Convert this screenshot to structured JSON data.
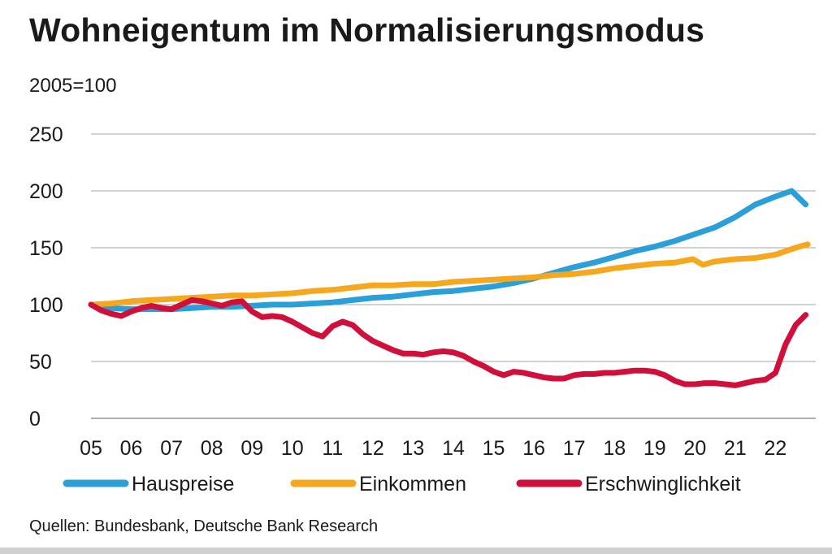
{
  "chart_data": {
    "type": "line",
    "title": "Wohneigentum im Normalisierungsmodus",
    "unit_label": "2005=100",
    "ylim": [
      0,
      250
    ],
    "yticks": [
      0,
      50,
      100,
      150,
      200,
      250
    ],
    "xlim": [
      2005,
      2023
    ],
    "xticks": [
      "05",
      "06",
      "07",
      "08",
      "09",
      "10",
      "11",
      "12",
      "13",
      "14",
      "15",
      "16",
      "17",
      "18",
      "19",
      "20",
      "21",
      "22"
    ],
    "grid": true,
    "legend_position": "bottom",
    "series": [
      {
        "name": "Hauspreise",
        "color": "#2a9fd8",
        "x": [
          2005.0,
          2005.5,
          2006.0,
          2006.5,
          2007.0,
          2007.5,
          2008.0,
          2008.5,
          2009.0,
          2009.5,
          2010.0,
          2010.5,
          2011.0,
          2011.5,
          2012.0,
          2012.5,
          2013.0,
          2013.5,
          2014.0,
          2014.5,
          2015.0,
          2015.5,
          2016.0,
          2016.5,
          2017.0,
          2017.5,
          2018.0,
          2018.5,
          2019.0,
          2019.5,
          2020.0,
          2020.5,
          2021.0,
          2021.5,
          2022.0,
          2022.4,
          2022.75
        ],
        "y": [
          100,
          97,
          96,
          96,
          96,
          97,
          98,
          98,
          99,
          100,
          100,
          101,
          102,
          104,
          106,
          107,
          109,
          111,
          112,
          114,
          116,
          119,
          123,
          128,
          133,
          137,
          142,
          147,
          151,
          156,
          162,
          168,
          177,
          188,
          195,
          200,
          188
        ]
      },
      {
        "name": "Einkommen",
        "color": "#f5a81d",
        "x": [
          2005.0,
          2005.5,
          2006.0,
          2006.5,
          2007.0,
          2007.5,
          2008.0,
          2008.5,
          2009.0,
          2009.5,
          2010.0,
          2010.5,
          2011.0,
          2011.5,
          2012.0,
          2012.5,
          2013.0,
          2013.5,
          2014.0,
          2014.5,
          2015.0,
          2015.5,
          2016.0,
          2016.5,
          2017.0,
          2017.5,
          2018.0,
          2018.5,
          2019.0,
          2019.5,
          2019.95,
          2020.2,
          2020.5,
          2021.0,
          2021.5,
          2022.0,
          2022.5,
          2022.8
        ],
        "y": [
          100,
          101,
          103,
          104,
          105,
          106,
          107,
          108,
          108,
          109,
          110,
          112,
          113,
          115,
          117,
          117,
          118,
          118,
          120,
          121,
          122,
          123,
          124,
          126,
          127,
          129,
          132,
          134,
          136,
          137,
          140,
          135,
          138,
          140,
          141,
          144,
          150,
          153
        ]
      },
      {
        "name": "Erschwinglichkeit",
        "color": "#d0103a",
        "x": [
          2005.0,
          2005.25,
          2005.5,
          2005.75,
          2006.0,
          2006.25,
          2006.5,
          2006.75,
          2007.0,
          2007.25,
          2007.5,
          2007.75,
          2008.0,
          2008.25,
          2008.5,
          2008.75,
          2009.0,
          2009.25,
          2009.5,
          2009.75,
          2010.0,
          2010.25,
          2010.5,
          2010.75,
          2011.0,
          2011.25,
          2011.5,
          2011.75,
          2012.0,
          2012.25,
          2012.5,
          2012.75,
          2013.0,
          2013.25,
          2013.5,
          2013.75,
          2014.0,
          2014.25,
          2014.5,
          2014.75,
          2015.0,
          2015.25,
          2015.5,
          2015.75,
          2016.0,
          2016.25,
          2016.5,
          2016.75,
          2017.0,
          2017.25,
          2017.5,
          2017.75,
          2018.0,
          2018.25,
          2018.5,
          2018.75,
          2019.0,
          2019.25,
          2019.5,
          2019.75,
          2020.0,
          2020.25,
          2020.5,
          2020.75,
          2021.0,
          2021.25,
          2021.5,
          2021.75,
          2022.0,
          2022.25,
          2022.5,
          2022.75
        ],
        "y": [
          100,
          95,
          92,
          90,
          94,
          97,
          99,
          97,
          96,
          100,
          104,
          103,
          101,
          99,
          102,
          103,
          94,
          89,
          90,
          89,
          85,
          80,
          75,
          72,
          81,
          85,
          82,
          74,
          68,
          64,
          60,
          57,
          57,
          56,
          58,
          59,
          58,
          55,
          50,
          46,
          41,
          38,
          41,
          40,
          38,
          36,
          35,
          35,
          38,
          39,
          39,
          40,
          40,
          41,
          42,
          42,
          41,
          38,
          33,
          30,
          30,
          31,
          31,
          30,
          29,
          31,
          33,
          34,
          40,
          65,
          82,
          91
        ]
      }
    ]
  },
  "footer": {
    "source": "Quellen: Bundesbank, Deutsche Bank Research"
  }
}
